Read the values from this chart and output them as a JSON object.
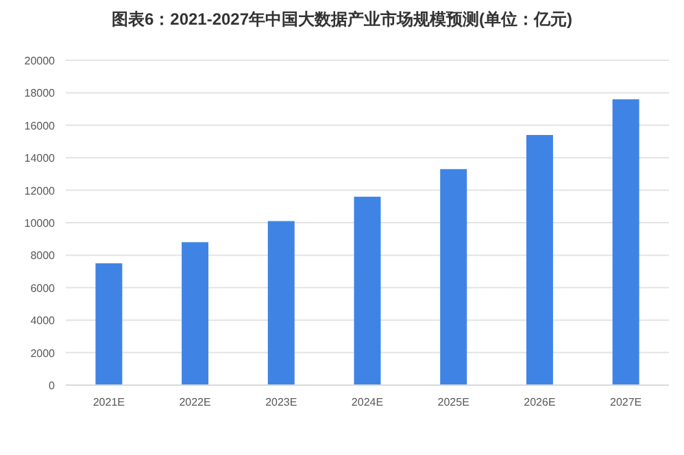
{
  "chart_data": {
    "type": "bar",
    "title": "图表6：2021-2027年中国大数据产业市场规模预测(单位：亿元)",
    "categories": [
      "2021E",
      "2022E",
      "2023E",
      "2024E",
      "2025E",
      "2026E",
      "2027E"
    ],
    "values": [
      7500,
      8800,
      10100,
      11600,
      13300,
      15400,
      17600
    ],
    "color": "#3f84e5",
    "ylim": [
      0,
      20000
    ],
    "yticks": [
      0,
      2000,
      4000,
      6000,
      8000,
      10000,
      12000,
      14000,
      16000,
      18000,
      20000
    ],
    "grid": "y"
  }
}
